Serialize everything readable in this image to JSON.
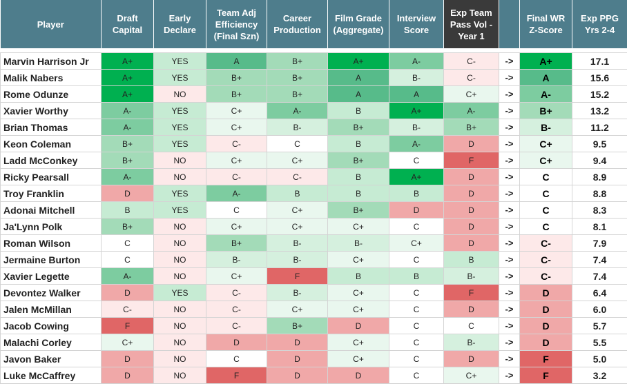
{
  "headers": {
    "player": "Player",
    "draft_capital": "Draft Capital",
    "early_declare": "Early Declare",
    "team_adj_eff": "Team Adj Efficiency (Final Szn)",
    "career_production": "Career Production",
    "film_grade": "Film Grade (Aggregate)",
    "interview_score": "Interview Score",
    "exp_team_pass_vol": "Exp Team Pass Vol - Year 1",
    "final_wr": "Final WR Z-Score",
    "exp_ppg": "Exp PPG Yrs 2-4"
  },
  "arrow": "->",
  "grade_colors": {
    "A+": "#00b050",
    "A": "#57bb8a",
    "A-": "#7dcca0",
    "B+": "#a3dbb8",
    "B": "#c6ebd3",
    "B-": "#d5f0de",
    "C+": "#e9f7ee",
    "C": "#ffffff",
    "C-": "#fde9e9",
    "D": "#f0a8a8",
    "F": "#e06666",
    "YES": "#c6ebd3",
    "NO": "#fde9e9"
  },
  "rows": [
    {
      "player": "Marvin Harrison Jr",
      "draft": "A+",
      "early": "YES",
      "eff": "A",
      "career": "B+",
      "film": "A+",
      "interview": "A-",
      "pass": "C-",
      "final": "A+",
      "ppg": "17.1"
    },
    {
      "player": "Malik Nabers",
      "draft": "A+",
      "early": "YES",
      "eff": "B+",
      "career": "B+",
      "film": "A",
      "interview": "B-",
      "pass": "C-",
      "final": "A",
      "ppg": "15.6"
    },
    {
      "player": "Rome Odunze",
      "draft": "A+",
      "early": "NO",
      "eff": "B+",
      "career": "B+",
      "film": "A",
      "interview": "A",
      "pass": "C+",
      "final": "A-",
      "ppg": "15.2"
    },
    {
      "player": "Xavier Worthy",
      "draft": "A-",
      "early": "YES",
      "eff": "C+",
      "career": "A-",
      "film": "B",
      "interview": "A+",
      "pass": "A-",
      "final": "B+",
      "ppg": "13.2"
    },
    {
      "player": "Brian Thomas",
      "draft": "A-",
      "early": "YES",
      "eff": "C+",
      "career": "B-",
      "film": "B+",
      "interview": "B-",
      "pass": "B+",
      "final": "B-",
      "ppg": "11.2"
    },
    {
      "player": "Keon Coleman",
      "draft": "B+",
      "early": "YES",
      "eff": "C-",
      "career": "C",
      "film": "B",
      "interview": "A-",
      "pass": "D",
      "final": "C+",
      "ppg": "9.5"
    },
    {
      "player": "Ladd McConkey",
      "draft": "B+",
      "early": "NO",
      "eff": "C+",
      "career": "C+",
      "film": "B+",
      "interview": "C",
      "pass": "F",
      "final": "C+",
      "ppg": "9.4"
    },
    {
      "player": "Ricky Pearsall",
      "draft": "A-",
      "early": "NO",
      "eff": "C-",
      "career": "C-",
      "film": "B",
      "interview": "A+",
      "pass": "D",
      "final": "C",
      "ppg": "8.9"
    },
    {
      "player": "Troy Franklin",
      "draft": "D",
      "early": "YES",
      "eff": "A-",
      "career": "B",
      "film": "B",
      "interview": "B",
      "pass": "D",
      "final": "C",
      "ppg": "8.8"
    },
    {
      "player": "Adonai Mitchell",
      "draft": "B",
      "early": "YES",
      "eff": "C",
      "career": "C+",
      "film": "B+",
      "interview": "D",
      "pass": "D",
      "final": "C",
      "ppg": "8.3"
    },
    {
      "player": "Ja'Lynn Polk",
      "draft": "B+",
      "early": "NO",
      "eff": "C+",
      "career": "C+",
      "film": "C+",
      "interview": "C",
      "pass": "D",
      "final": "C",
      "ppg": "8.1"
    },
    {
      "player": "Roman Wilson",
      "draft": "C",
      "early": "NO",
      "eff": "B+",
      "career": "B-",
      "film": "B-",
      "interview": "C+",
      "pass": "D",
      "final": "C-",
      "ppg": "7.9"
    },
    {
      "player": "Jermaine Burton",
      "draft": "C",
      "early": "NO",
      "eff": "B-",
      "career": "B-",
      "film": "C+",
      "interview": "C",
      "pass": "B",
      "final": "C-",
      "ppg": "7.4"
    },
    {
      "player": "Xavier Legette",
      "draft": "A-",
      "early": "NO",
      "eff": "C+",
      "career": "F",
      "film": "B",
      "interview": "B",
      "pass": "B-",
      "final": "C-",
      "ppg": "7.4"
    },
    {
      "player": "Devontez Walker",
      "draft": "D",
      "early": "YES",
      "eff": "C-",
      "career": "B-",
      "film": "C+",
      "interview": "C",
      "pass": "F",
      "final": "D",
      "ppg": "6.4"
    },
    {
      "player": "Jalen McMillan",
      "draft": "C-",
      "early": "NO",
      "eff": "C-",
      "career": "C+",
      "film": "C+",
      "interview": "C",
      "pass": "D",
      "final": "D",
      "ppg": "6.0"
    },
    {
      "player": "Jacob Cowing",
      "draft": "F",
      "early": "NO",
      "eff": "C-",
      "career": "B+",
      "film": "D",
      "interview": "C",
      "pass": "C",
      "final": "D",
      "ppg": "5.7"
    },
    {
      "player": "Malachi Corley",
      "draft": "C+",
      "early": "NO",
      "eff": "D",
      "career": "D",
      "film": "C+",
      "interview": "C",
      "pass": "B-",
      "final": "D",
      "ppg": "5.5"
    },
    {
      "player": "Javon Baker",
      "draft": "D",
      "early": "NO",
      "eff": "C",
      "career": "D",
      "film": "C+",
      "interview": "C",
      "pass": "D",
      "final": "F",
      "ppg": "5.0"
    },
    {
      "player": "Luke McCaffrey",
      "draft": "D",
      "early": "NO",
      "eff": "F",
      "career": "D",
      "film": "D",
      "interview": "C",
      "pass": "C+",
      "final": "F",
      "ppg": "3.2"
    }
  ]
}
